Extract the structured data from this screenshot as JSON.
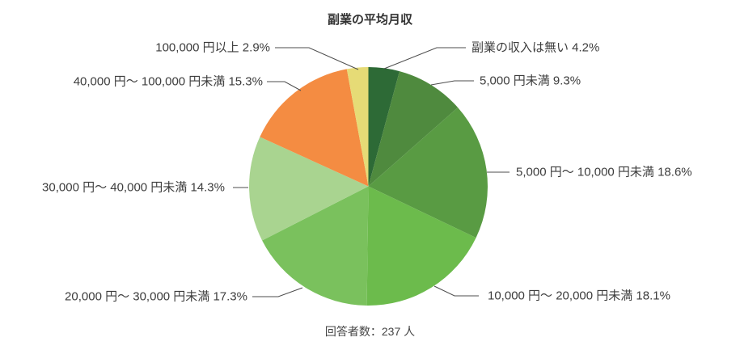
{
  "chart_data": {
    "type": "pie",
    "title": "副業の平均月収",
    "note": "回答者数：237 人",
    "categories": [
      "副業の収入は無い",
      "5,000 円未満",
      "5,000 円〜 10,000 円未満",
      "10,000 円〜 20,000 円未満",
      "20,000 円〜 30,000 円未満",
      "30,000 円〜 40,000 円未満",
      "40,000 円〜 100,000 円未満",
      "100,000 円以上"
    ],
    "values": [
      4.2,
      9.3,
      18.6,
      18.1,
      17.3,
      14.3,
      15.3,
      2.9
    ],
    "unit": "%",
    "callout_labels": [
      "副業の収入は無い 4.2%",
      "5,000 円未満 9.3%",
      "5,000 円〜 10,000 円未満 18.6%",
      "10,000 円〜 20,000 円未満 18.1%",
      "20,000 円〜 30,000 円未満 17.3%",
      "30,000 円〜 40,000 円未満 14.3%",
      "40,000 円〜 100,000 円未満 15.3%",
      "100,000 円以上 2.9%"
    ],
    "colors": [
      "#2d6a36",
      "#4f8a3e",
      "#599b43",
      "#6cbb4c",
      "#7ac15d",
      "#a9d490",
      "#f48c42",
      "#e6db76"
    ],
    "start_angle_deg": 0,
    "direction": "clockwise",
    "legend_position": "callout-labels",
    "leader_line_color": "#4d4d4d",
    "label_color": "#3d3d3d",
    "total_respondents": 237
  }
}
